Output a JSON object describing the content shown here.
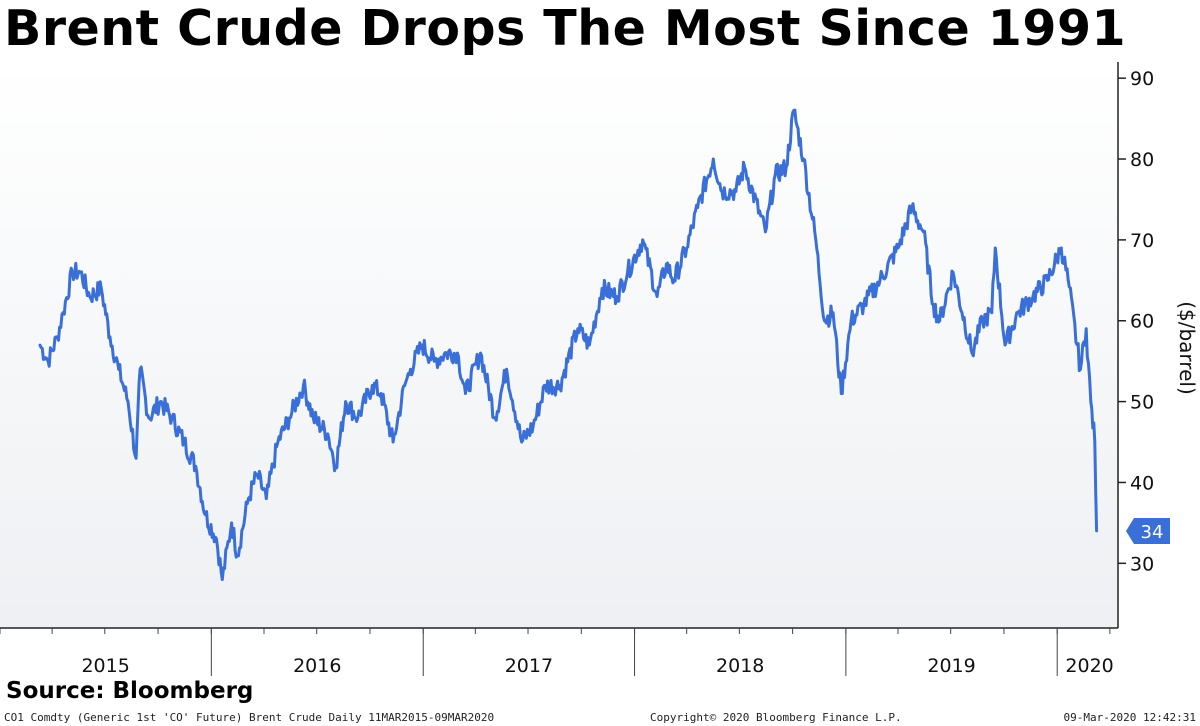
{
  "title": "Brent Crude Drops The Most Since 1991",
  "source_label": "Source: Bloomberg",
  "footer": {
    "security": "CO1 Comdty (Generic 1st 'CO' Future) Brent Crude  Daily 11MAR2015-09MAR2020",
    "copyright": "Copyright© 2020 Bloomberg Finance L.P.",
    "timestamp": "09-Mar-2020 12:42:31"
  },
  "chart_data": {
    "type": "line",
    "title": "Brent Crude Drops The Most Since 1991",
    "ylabel": "($/barrel)",
    "xlabel": "",
    "ylim": [
      22,
      92
    ],
    "yticks": [
      30,
      40,
      50,
      60,
      70,
      80,
      90
    ],
    "year_labels": [
      "2015",
      "2016",
      "2017",
      "2018",
      "2019",
      "2020"
    ],
    "grid": false,
    "line_color": "#3a6fd8",
    "last_value_label": "34",
    "series": [
      {
        "points": [
          [
            "2015-03-11",
            57
          ],
          [
            "2015-03-25",
            55
          ],
          [
            "2015-04-10",
            58
          ],
          [
            "2015-04-20",
            61
          ],
          [
            "2015-05-06",
            66
          ],
          [
            "2015-05-20",
            66
          ],
          [
            "2015-06-05",
            63
          ],
          [
            "2015-06-25",
            64
          ],
          [
            "2015-07-10",
            58
          ],
          [
            "2015-07-25",
            54
          ],
          [
            "2015-08-10",
            50
          ],
          [
            "2015-08-24",
            43
          ],
          [
            "2015-08-31",
            54
          ],
          [
            "2015-09-15",
            48
          ],
          [
            "2015-10-05",
            50
          ],
          [
            "2015-10-25",
            48
          ],
          [
            "2015-11-15",
            45
          ],
          [
            "2015-12-05",
            42
          ],
          [
            "2015-12-22",
            36
          ],
          [
            "2016-01-10",
            33
          ],
          [
            "2016-01-20",
            28
          ],
          [
            "2016-02-05",
            35
          ],
          [
            "2016-02-15",
            31
          ],
          [
            "2016-03-05",
            38
          ],
          [
            "2016-03-20",
            41
          ],
          [
            "2016-04-05",
            38
          ],
          [
            "2016-04-25",
            45
          ],
          [
            "2016-05-15",
            48
          ],
          [
            "2016-06-08",
            52
          ],
          [
            "2016-06-25",
            48
          ],
          [
            "2016-07-20",
            46
          ],
          [
            "2016-08-03",
            42
          ],
          [
            "2016-08-20",
            50
          ],
          [
            "2016-09-10",
            48
          ],
          [
            "2016-10-05",
            52
          ],
          [
            "2016-10-20",
            51
          ],
          [
            "2016-11-10",
            45
          ],
          [
            "2016-11-30",
            52
          ],
          [
            "2016-12-10",
            54
          ],
          [
            "2016-12-30",
            57
          ],
          [
            "2017-01-20",
            55
          ],
          [
            "2017-02-10",
            56
          ],
          [
            "2017-03-01",
            56
          ],
          [
            "2017-03-15",
            51
          ],
          [
            "2017-04-10",
            56
          ],
          [
            "2017-05-05",
            48
          ],
          [
            "2017-05-25",
            54
          ],
          [
            "2017-06-20",
            45
          ],
          [
            "2017-07-10",
            47
          ],
          [
            "2017-07-31",
            52
          ],
          [
            "2017-08-25",
            52
          ],
          [
            "2017-09-25",
            59
          ],
          [
            "2017-10-15",
            57
          ],
          [
            "2017-11-06",
            64
          ],
          [
            "2017-12-01",
            63
          ],
          [
            "2017-12-20",
            66
          ],
          [
            "2018-01-15",
            70
          ],
          [
            "2018-02-09",
            63
          ],
          [
            "2018-02-25",
            67
          ],
          [
            "2018-03-10",
            65
          ],
          [
            "2018-04-01",
            69
          ],
          [
            "2018-04-20",
            74
          ],
          [
            "2018-05-17",
            80
          ],
          [
            "2018-06-01",
            76
          ],
          [
            "2018-06-25",
            76
          ],
          [
            "2018-07-10",
            79
          ],
          [
            "2018-08-15",
            71
          ],
          [
            "2018-09-01",
            78
          ],
          [
            "2018-09-20",
            79
          ],
          [
            "2018-10-03",
            86
          ],
          [
            "2018-10-20",
            80
          ],
          [
            "2018-11-10",
            70
          ],
          [
            "2018-11-25",
            60
          ],
          [
            "2018-12-10",
            61
          ],
          [
            "2018-12-24",
            51
          ],
          [
            "2019-01-10",
            60
          ],
          [
            "2019-02-01",
            62
          ],
          [
            "2019-03-01",
            65
          ],
          [
            "2019-04-01",
            69
          ],
          [
            "2019-04-25",
            74
          ],
          [
            "2019-05-15",
            71
          ],
          [
            "2019-06-01",
            62
          ],
          [
            "2019-06-12",
            60
          ],
          [
            "2019-07-05",
            66
          ],
          [
            "2019-08-07",
            56
          ],
          [
            "2019-08-25",
            60
          ],
          [
            "2019-09-10",
            61
          ],
          [
            "2019-09-16",
            69
          ],
          [
            "2019-10-03",
            57
          ],
          [
            "2019-10-25",
            61
          ],
          [
            "2019-11-20",
            63
          ],
          [
            "2019-12-15",
            65
          ],
          [
            "2020-01-08",
            69
          ],
          [
            "2020-01-20",
            65
          ],
          [
            "2020-02-10",
            54
          ],
          [
            "2020-02-20",
            59
          ],
          [
            "2020-02-28",
            50
          ],
          [
            "2020-03-06",
            45
          ],
          [
            "2020-03-09",
            34
          ]
        ]
      }
    ]
  }
}
